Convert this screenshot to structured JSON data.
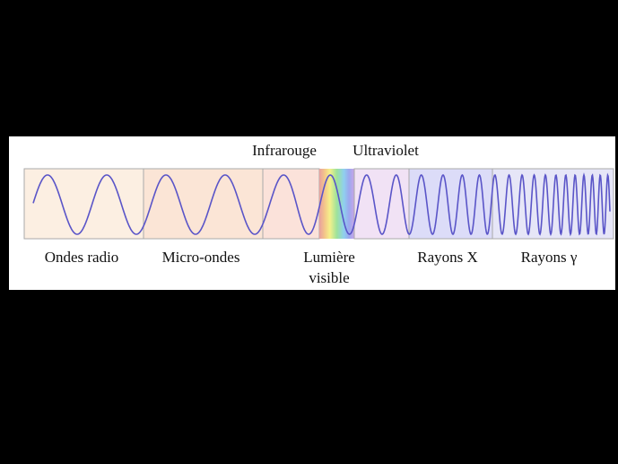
{
  "spectrum": {
    "top_labels": [
      "Infrarouge",
      "Ultraviolet"
    ],
    "bottom_labels": [
      "Ondes radio",
      "Micro-ondes",
      [
        "Lumière",
        "visible"
      ],
      "Rayons X",
      "Rayons γ"
    ]
  }
}
